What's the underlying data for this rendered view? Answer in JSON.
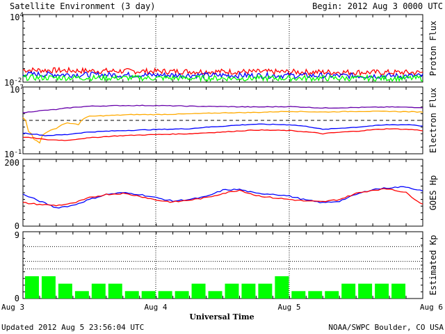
{
  "header": {
    "title": "Satellite Environment (3 day)",
    "begin": "Begin:  2012 Aug 3 0000 UTC"
  },
  "footer": {
    "updated": "Updated 2012 Aug  5 23:56:04 UTC",
    "credit": "NOAA/SWPC Boulder, CO USA"
  },
  "x_axis": {
    "label": "Universal Time",
    "ticks": [
      "Aug 3",
      "Aug 4",
      "Aug 5",
      "Aug 6"
    ],
    "range_hours": [
      0,
      72
    ]
  },
  "colors": {
    "red": "#ff0000",
    "blue": "#0000ff",
    "green": "#00ff00",
    "purple": "#6600aa",
    "orange": "#ffaa00",
    "bar_green": "#00ff00"
  },
  "chart_data": [
    {
      "type": "line",
      "ylabel": "Proton Flux",
      "scale": "log",
      "ylim": [
        0.01,
        10000
      ],
      "y_tick_labels": [
        {
          "base": "10",
          "exp": "4"
        },
        {
          "base": "10",
          "exp": "-2"
        }
      ],
      "threshold": 10,
      "series": [
        {
          "color": "red",
          "x": [
            0,
            12,
            24,
            36,
            48,
            60,
            72
          ],
          "y": [
            0.12,
            0.1,
            0.09,
            0.085,
            0.08,
            0.075,
            0.07
          ]
        },
        {
          "color": "blue",
          "x": [
            0,
            12,
            24,
            36,
            48,
            60,
            72
          ],
          "y": [
            0.05,
            0.045,
            0.042,
            0.04,
            0.038,
            0.036,
            0.035
          ]
        },
        {
          "color": "green",
          "x": [
            0,
            12,
            24,
            36,
            48,
            60,
            72
          ],
          "y": [
            0.025,
            0.024,
            0.023,
            0.022,
            0.022,
            0.022,
            0.022
          ]
        }
      ]
    },
    {
      "type": "line",
      "ylabel": "Electron Flux",
      "scale": "log",
      "ylim": [
        0.1,
        10000000
      ],
      "y_tick_labels": [
        {
          "base": "10",
          "exp": "7"
        },
        {
          "base": "10",
          "exp": "-1"
        }
      ],
      "threshold": 1000,
      "series": [
        {
          "color": "purple",
          "x": [
            0,
            6,
            12,
            18,
            24,
            30,
            36,
            42,
            48,
            54,
            60,
            66,
            72
          ],
          "y": [
            8000,
            20000,
            50000,
            60000,
            60000,
            50000,
            45000,
            40000,
            45000,
            30000,
            35000,
            40000,
            35000
          ]
        },
        {
          "color": "orange",
          "x": [
            0,
            1,
            2,
            3,
            4,
            6,
            8,
            10,
            12,
            16,
            20,
            24,
            30,
            36,
            42,
            48,
            54,
            60,
            66,
            72
          ],
          "y": [
            2000,
            50,
            5,
            2,
            30,
            100,
            500,
            300,
            3000,
            4000,
            5000,
            5000,
            6000,
            8000,
            9000,
            12000,
            10000,
            12000,
            12000,
            10000
          ]
        },
        {
          "color": "blue",
          "x": [
            0,
            4,
            8,
            12,
            18,
            24,
            30,
            36,
            42,
            48,
            54,
            60,
            66,
            70,
            72
          ],
          "y": [
            30,
            15,
            20,
            40,
            60,
            80,
            100,
            200,
            350,
            300,
            80,
            150,
            300,
            300,
            200
          ]
        },
        {
          "color": "red",
          "x": [
            0,
            4,
            8,
            12,
            18,
            24,
            30,
            36,
            42,
            48,
            54,
            60,
            66,
            70,
            72
          ],
          "y": [
            10,
            5,
            4,
            8,
            15,
            20,
            25,
            40,
            70,
            60,
            25,
            50,
            100,
            80,
            60
          ]
        }
      ]
    },
    {
      "type": "line",
      "ylabel": "GOES Hp",
      "scale": "linear",
      "ylim": [
        0,
        200
      ],
      "y_tick_labels": [
        "200",
        "0"
      ],
      "series": [
        {
          "color": "blue",
          "x": [
            0,
            3,
            6,
            9,
            12,
            15,
            18,
            21,
            24,
            27,
            30,
            33,
            36,
            39,
            42,
            45,
            48,
            51,
            54,
            57,
            60,
            63,
            66,
            69,
            72
          ],
          "y": [
            95,
            75,
            55,
            62,
            80,
            95,
            100,
            95,
            85,
            75,
            80,
            88,
            108,
            110,
            98,
            96,
            90,
            78,
            70,
            75,
            95,
            110,
            115,
            118,
            105
          ]
        },
        {
          "color": "red",
          "x": [
            0,
            3,
            6,
            9,
            12,
            15,
            18,
            21,
            24,
            27,
            30,
            33,
            36,
            39,
            42,
            45,
            48,
            51,
            54,
            57,
            60,
            63,
            66,
            69,
            72
          ],
          "y": [
            70,
            65,
            62,
            68,
            85,
            95,
            98,
            90,
            78,
            72,
            78,
            85,
            98,
            108,
            92,
            85,
            80,
            75,
            73,
            80,
            98,
            108,
            112,
            100,
            65
          ]
        }
      ]
    },
    {
      "type": "bar",
      "ylabel": "Estimated Kp",
      "ylim": [
        0,
        9
      ],
      "y_tick_labels": [
        "9",
        "0"
      ],
      "bar_hours": 3,
      "values": [
        3,
        3,
        2,
        1,
        2,
        2,
        1,
        1,
        1,
        1,
        2,
        1,
        2,
        2,
        2,
        3,
        1,
        1,
        1,
        2,
        2,
        2,
        2
      ]
    }
  ]
}
